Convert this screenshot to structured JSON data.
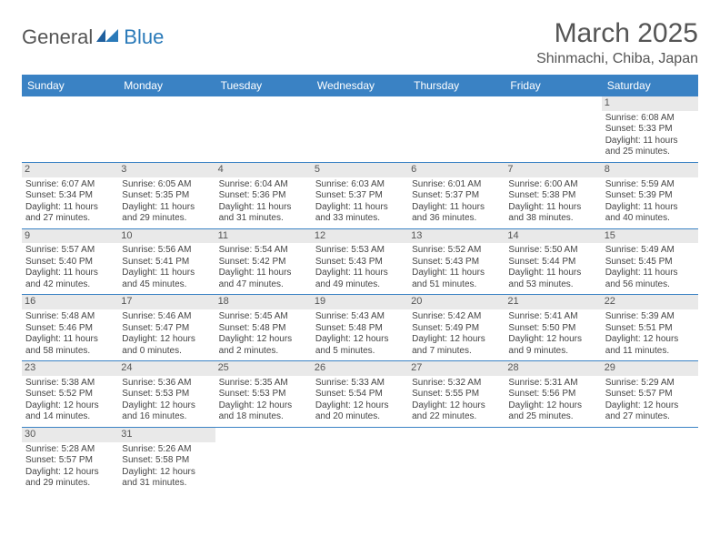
{
  "logo": {
    "general": "General",
    "blue": "Blue",
    "accent_color": "#2a7ab9"
  },
  "title": "March 2025",
  "location": "Shinmachi, Chiba, Japan",
  "header_bg": "#3a82c4",
  "weekdays": [
    "Sunday",
    "Monday",
    "Tuesday",
    "Wednesday",
    "Thursday",
    "Friday",
    "Saturday"
  ],
  "grid": [
    [
      null,
      null,
      null,
      null,
      null,
      null,
      {
        "n": "1",
        "sr": "6:08 AM",
        "ss": "5:33 PM",
        "dl": "11 hours and 25 minutes."
      }
    ],
    [
      {
        "n": "2",
        "sr": "6:07 AM",
        "ss": "5:34 PM",
        "dl": "11 hours and 27 minutes."
      },
      {
        "n": "3",
        "sr": "6:05 AM",
        "ss": "5:35 PM",
        "dl": "11 hours and 29 minutes."
      },
      {
        "n": "4",
        "sr": "6:04 AM",
        "ss": "5:36 PM",
        "dl": "11 hours and 31 minutes."
      },
      {
        "n": "5",
        "sr": "6:03 AM",
        "ss": "5:37 PM",
        "dl": "11 hours and 33 minutes."
      },
      {
        "n": "6",
        "sr": "6:01 AM",
        "ss": "5:37 PM",
        "dl": "11 hours and 36 minutes."
      },
      {
        "n": "7",
        "sr": "6:00 AM",
        "ss": "5:38 PM",
        "dl": "11 hours and 38 minutes."
      },
      {
        "n": "8",
        "sr": "5:59 AM",
        "ss": "5:39 PM",
        "dl": "11 hours and 40 minutes."
      }
    ],
    [
      {
        "n": "9",
        "sr": "5:57 AM",
        "ss": "5:40 PM",
        "dl": "11 hours and 42 minutes."
      },
      {
        "n": "10",
        "sr": "5:56 AM",
        "ss": "5:41 PM",
        "dl": "11 hours and 45 minutes."
      },
      {
        "n": "11",
        "sr": "5:54 AM",
        "ss": "5:42 PM",
        "dl": "11 hours and 47 minutes."
      },
      {
        "n": "12",
        "sr": "5:53 AM",
        "ss": "5:43 PM",
        "dl": "11 hours and 49 minutes."
      },
      {
        "n": "13",
        "sr": "5:52 AM",
        "ss": "5:43 PM",
        "dl": "11 hours and 51 minutes."
      },
      {
        "n": "14",
        "sr": "5:50 AM",
        "ss": "5:44 PM",
        "dl": "11 hours and 53 minutes."
      },
      {
        "n": "15",
        "sr": "5:49 AM",
        "ss": "5:45 PM",
        "dl": "11 hours and 56 minutes."
      }
    ],
    [
      {
        "n": "16",
        "sr": "5:48 AM",
        "ss": "5:46 PM",
        "dl": "11 hours and 58 minutes."
      },
      {
        "n": "17",
        "sr": "5:46 AM",
        "ss": "5:47 PM",
        "dl": "12 hours and 0 minutes."
      },
      {
        "n": "18",
        "sr": "5:45 AM",
        "ss": "5:48 PM",
        "dl": "12 hours and 2 minutes."
      },
      {
        "n": "19",
        "sr": "5:43 AM",
        "ss": "5:48 PM",
        "dl": "12 hours and 5 minutes."
      },
      {
        "n": "20",
        "sr": "5:42 AM",
        "ss": "5:49 PM",
        "dl": "12 hours and 7 minutes."
      },
      {
        "n": "21",
        "sr": "5:41 AM",
        "ss": "5:50 PM",
        "dl": "12 hours and 9 minutes."
      },
      {
        "n": "22",
        "sr": "5:39 AM",
        "ss": "5:51 PM",
        "dl": "12 hours and 11 minutes."
      }
    ],
    [
      {
        "n": "23",
        "sr": "5:38 AM",
        "ss": "5:52 PM",
        "dl": "12 hours and 14 minutes."
      },
      {
        "n": "24",
        "sr": "5:36 AM",
        "ss": "5:53 PM",
        "dl": "12 hours and 16 minutes."
      },
      {
        "n": "25",
        "sr": "5:35 AM",
        "ss": "5:53 PM",
        "dl": "12 hours and 18 minutes."
      },
      {
        "n": "26",
        "sr": "5:33 AM",
        "ss": "5:54 PM",
        "dl": "12 hours and 20 minutes."
      },
      {
        "n": "27",
        "sr": "5:32 AM",
        "ss": "5:55 PM",
        "dl": "12 hours and 22 minutes."
      },
      {
        "n": "28",
        "sr": "5:31 AM",
        "ss": "5:56 PM",
        "dl": "12 hours and 25 minutes."
      },
      {
        "n": "29",
        "sr": "5:29 AM",
        "ss": "5:57 PM",
        "dl": "12 hours and 27 minutes."
      }
    ],
    [
      {
        "n": "30",
        "sr": "5:28 AM",
        "ss": "5:57 PM",
        "dl": "12 hours and 29 minutes."
      },
      {
        "n": "31",
        "sr": "5:26 AM",
        "ss": "5:58 PM",
        "dl": "12 hours and 31 minutes."
      },
      null,
      null,
      null,
      null,
      null
    ]
  ]
}
